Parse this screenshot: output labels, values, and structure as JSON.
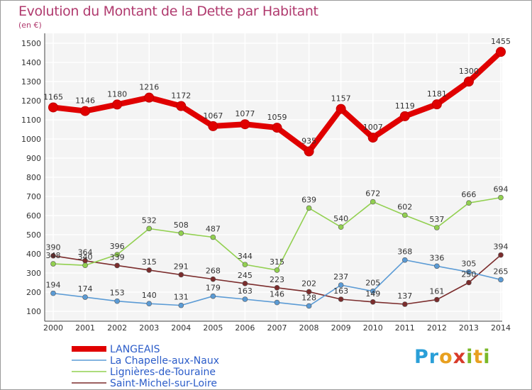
{
  "chart_data": {
    "type": "line",
    "title": "Evolution du Montant de la Dette par Habitant",
    "subtitle": "(en €)",
    "x": [
      "2000",
      "2001",
      "2002",
      "2003",
      "2004",
      "2005",
      "2006",
      "2007",
      "2008",
      "2009",
      "2010",
      "2011",
      "2012",
      "2013",
      "2014"
    ],
    "ylim": [
      100,
      1500
    ],
    "yticks": [
      100,
      200,
      300,
      400,
      500,
      600,
      700,
      800,
      900,
      1000,
      1100,
      1200,
      1300,
      1400,
      1500
    ],
    "grid": true,
    "legend_position": "bottom-left",
    "series": [
      {
        "name": "LANGEAIS",
        "color": "#e00000",
        "values": [
          1165,
          1146,
          1180,
          1216,
          1172,
          1067,
          1077,
          1059,
          935,
          1157,
          1007,
          1119,
          1181,
          1300,
          1455
        ]
      },
      {
        "name": "La Chapelle-aux-Naux",
        "color": "#5b9bd5",
        "values": [
          194,
          174,
          153,
          140,
          131,
          179,
          163,
          146,
          128,
          237,
          205,
          368,
          336,
          305,
          265
        ]
      },
      {
        "name": "Lignières-de-Touraine",
        "color": "#92d050",
        "values": [
          348,
          340,
          396,
          532,
          508,
          487,
          344,
          315,
          639,
          540,
          672,
          602,
          537,
          666,
          694
        ]
      },
      {
        "name": "Saint-Michel-sur-Loire",
        "color": "#7b2c2c",
        "values": [
          390,
          364,
          339,
          315,
          291,
          268,
          245,
          223,
          202,
          163,
          149,
          137,
          161,
          250,
          394
        ]
      }
    ]
  },
  "brand": {
    "letters": [
      "P",
      "r",
      "o",
      "x",
      "i",
      "t",
      "i"
    ]
  }
}
